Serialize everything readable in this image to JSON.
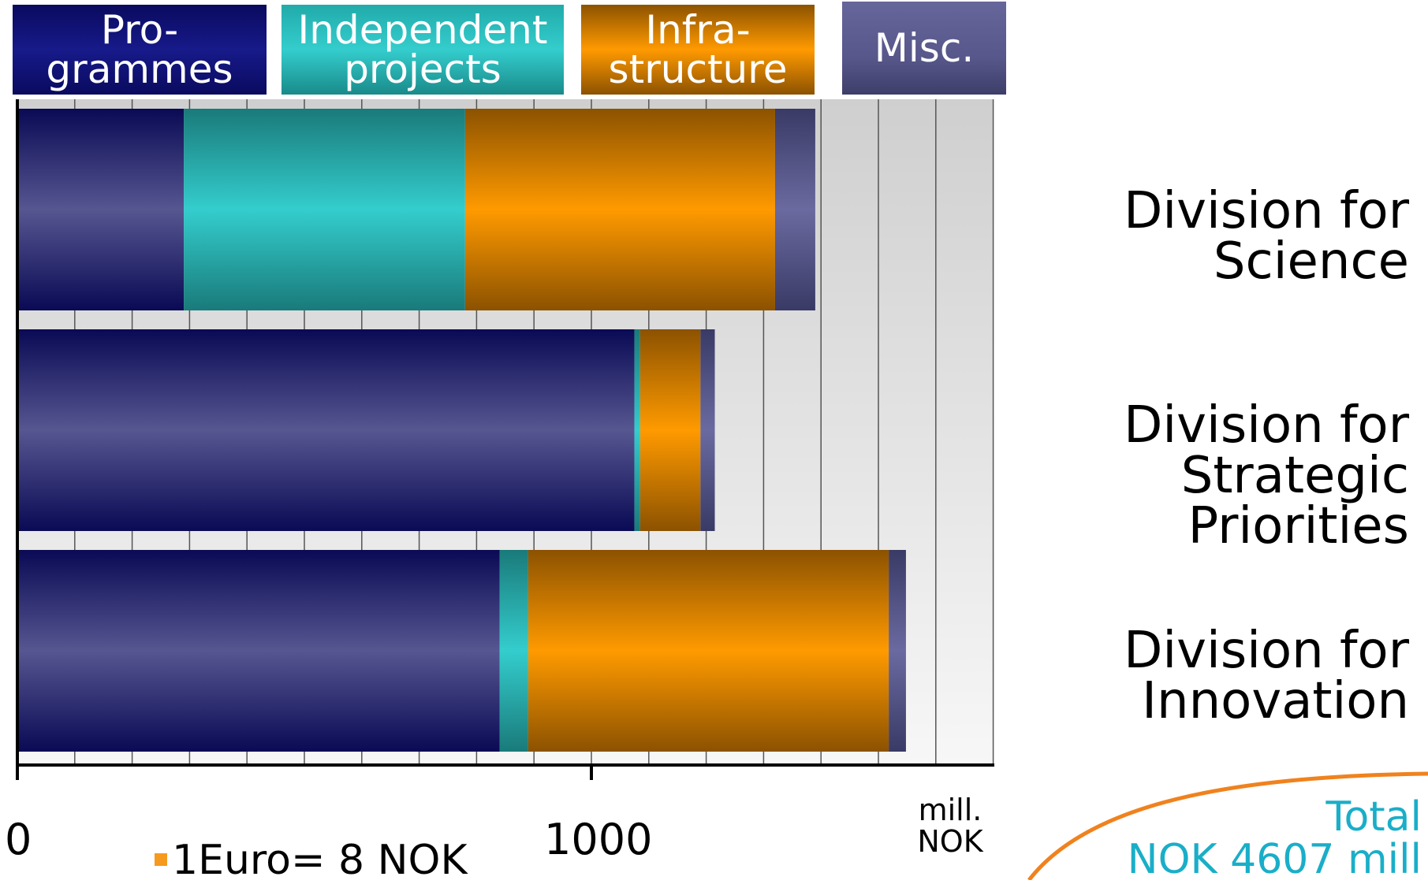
{
  "legend": [
    {
      "key": "programmes",
      "label": "Pro-\ngrammes"
    },
    {
      "key": "independent",
      "label": "Independent\nprojects"
    },
    {
      "key": "infra",
      "label": "Infra-\nstructure"
    },
    {
      "key": "misc",
      "label": "Misc."
    }
  ],
  "colors": {
    "programmes": "#1a1a78",
    "independent": "#34cdcd",
    "infrastructure": "#ff9a00",
    "misc": "#5a5a90",
    "total_text": "#1aaec8",
    "arc": "#f0821e"
  },
  "chart_data": {
    "type": "bar",
    "orientation": "horizontal",
    "stacked": true,
    "categories": [
      "Division for\nScience",
      "Division for\nStrategic\nPriorities",
      "Division for\nInnovation"
    ],
    "series": [
      {
        "name": "Pro-grammes",
        "values": [
          290,
          1075,
          840
        ]
      },
      {
        "name": "Independent projects",
        "values": [
          490,
          10,
          50
        ]
      },
      {
        "name": "Infra-structure",
        "values": [
          540,
          105,
          628
        ]
      },
      {
        "name": "Misc.",
        "values": [
          70,
          25,
          30
        ]
      }
    ],
    "xlim": [
      0,
      1700
    ],
    "x_ticks": [
      "0",
      "1000"
    ],
    "x_unit": "mill.\nNOK",
    "grid": true
  },
  "note": "1Euro= 8 NOK",
  "total": "Total\nNOK 4607 mill"
}
